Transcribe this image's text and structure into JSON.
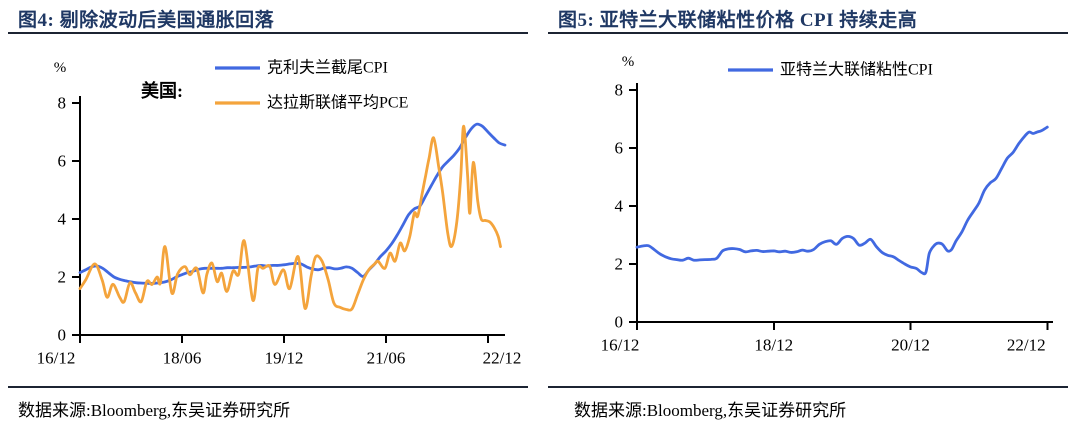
{
  "colors": {
    "blue": "#4169E1",
    "orange": "#F4A43C",
    "title_navy": "#1F3864",
    "rule": "#1c2433",
    "axis": "#000000"
  },
  "panels": [
    {
      "title": "图4: 剔除波动后美国通胀回落",
      "source": "数据来源:Bloomberg,东吴证券研究所"
    },
    {
      "title": "图5: 亚特兰大联储粘性价格 CPI 持续走高",
      "source": "数据来源:Bloomberg,东吴证券研究所"
    }
  ],
  "chart_data": [
    {
      "type": "line",
      "title": "剔除波动后美国通胀回落",
      "unit": "%",
      "annotation": "美国:",
      "x_encoding": "months_after_2016_12",
      "x_ticks": [
        {
          "label": "16/12",
          "month": 0
        },
        {
          "label": "18/06",
          "month": 18
        },
        {
          "label": "19/12",
          "month": 36
        },
        {
          "label": "21/06",
          "month": 54
        },
        {
          "label": "22/12",
          "month": 72
        }
      ],
      "x_max": 75,
      "ylim": [
        0,
        8
      ],
      "y_ticks": [
        0,
        2,
        4,
        6,
        8
      ],
      "grid": false,
      "legend_position": "top",
      "series": [
        {
          "name": "克利夫兰截尾CPI",
          "color": "#4169E1",
          "x": [
            0,
            1,
            2,
            3,
            4,
            5,
            6,
            7,
            8,
            9,
            10,
            11,
            12,
            13,
            14,
            15,
            16,
            17,
            18,
            19,
            20,
            21,
            22,
            23,
            24,
            25,
            26,
            27,
            28,
            29,
            30,
            31,
            32,
            33,
            34,
            35,
            36,
            37,
            38,
            39,
            40,
            41,
            42,
            43,
            44,
            45,
            46,
            47,
            48,
            49,
            50,
            51,
            52,
            53,
            54,
            55,
            56,
            57,
            58,
            59,
            60,
            61,
            62,
            63,
            64,
            65,
            66,
            67,
            68,
            69,
            70,
            71,
            72,
            73,
            74,
            75
          ],
          "y": [
            2.15,
            2.25,
            2.35,
            2.38,
            2.3,
            2.15,
            2.0,
            1.92,
            1.87,
            1.83,
            1.8,
            1.79,
            1.78,
            1.78,
            1.8,
            1.83,
            1.9,
            2.0,
            2.08,
            2.15,
            2.2,
            2.27,
            2.3,
            2.3,
            2.3,
            2.3,
            2.32,
            2.32,
            2.33,
            2.33,
            2.35,
            2.38,
            2.4,
            2.38,
            2.4,
            2.4,
            2.42,
            2.45,
            2.47,
            2.45,
            2.35,
            2.28,
            2.25,
            2.3,
            2.32,
            2.28,
            2.3,
            2.35,
            2.3,
            2.15,
            2.02,
            2.25,
            2.45,
            2.7,
            2.9,
            3.15,
            3.45,
            3.8,
            4.15,
            4.35,
            4.45,
            4.8,
            5.15,
            5.5,
            5.8,
            6.0,
            6.2,
            6.45,
            6.8,
            7.1,
            7.27,
            7.2,
            7.0,
            6.8,
            6.62,
            6.55
          ]
        },
        {
          "name": "达拉斯联储平均PCE",
          "color": "#F4A43C",
          "x": [
            0,
            1,
            2.6,
            3.9,
            4.8,
            5.8,
            7,
            7.8,
            8.8,
            9.8,
            10.8,
            11.8,
            12.7,
            13.6,
            14.2,
            15,
            16.2,
            17.2,
            18.5,
            19.4,
            20.6,
            21.7,
            22.4,
            23.3,
            24.2,
            25,
            25.9,
            27,
            28,
            29,
            30.5,
            31.4,
            32.3,
            33.5,
            34.4,
            35.9,
            37,
            38.5,
            39.7,
            40.8,
            41.6,
            42.7,
            43.8,
            44.8,
            45.9,
            47,
            48,
            49,
            50,
            51,
            52,
            52.6,
            53.8,
            54.7,
            55.6,
            56.5,
            57.3,
            58.2,
            59,
            59.6,
            60.4,
            61,
            61.6,
            62.4,
            63.3,
            64,
            64.9,
            65.6,
            66.5,
            67.2,
            67.7,
            68.4,
            68.8,
            69.4,
            70.2,
            70.8,
            71.5,
            72.3,
            73.1,
            73.8,
            74.2
          ],
          "y": [
            1.6,
            1.9,
            2.45,
            1.9,
            1.3,
            1.75,
            1.3,
            1.15,
            1.8,
            1.45,
            1.15,
            1.85,
            1.74,
            2.0,
            1.8,
            3.05,
            1.45,
            2.1,
            2.36,
            2.08,
            2.3,
            1.45,
            2.1,
            2.48,
            1.84,
            2.13,
            1.5,
            2.2,
            2.1,
            3.24,
            1.2,
            2.3,
            2.3,
            2.37,
            1.74,
            2.25,
            1.6,
            2.7,
            0.92,
            2.05,
            2.7,
            2.55,
            1.9,
            1.1,
            0.95,
            0.88,
            0.9,
            1.4,
            1.9,
            2.26,
            2.45,
            2.54,
            2.3,
            2.82,
            2.55,
            3.17,
            2.9,
            3.4,
            4.2,
            4.1,
            4.9,
            5.5,
            6.1,
            6.8,
            5.8,
            4.9,
            3.5,
            3.06,
            3.9,
            5.5,
            7.2,
            5.5,
            4.2,
            5.95,
            4.6,
            4.0,
            3.95,
            3.9,
            3.7,
            3.4,
            3.05
          ]
        }
      ]
    },
    {
      "type": "line",
      "title": "亚特兰大联储粘性价格 CPI 持续走高",
      "unit": "%",
      "annotation": "",
      "x_encoding": "months_after_2016_12",
      "x_ticks": [
        {
          "label": "16/12",
          "month": 0
        },
        {
          "label": "18/12",
          "month": 24
        },
        {
          "label": "20/12",
          "month": 48
        },
        {
          "label": "22/12",
          "month": 72
        }
      ],
      "x_max": 73,
      "ylim": [
        0,
        8
      ],
      "y_ticks": [
        0,
        2,
        4,
        6,
        8
      ],
      "grid": false,
      "legend_position": "top",
      "series": [
        {
          "name": "亚特兰大联储粘性CPI",
          "color": "#4169E1",
          "x": [
            0,
            1,
            2,
            3,
            4,
            5,
            6,
            7,
            8,
            9,
            10,
            11,
            12,
            13,
            14,
            15,
            16,
            17,
            18,
            19,
            20,
            21,
            22,
            23,
            24,
            25,
            26,
            27,
            28,
            29,
            30,
            31,
            32,
            33,
            34,
            35,
            36,
            37,
            38,
            39,
            40,
            41,
            42,
            43,
            44,
            45,
            46,
            47,
            48,
            49,
            50,
            50.7,
            51.3,
            52.2,
            52.8,
            53.6,
            54.5,
            55.2,
            56,
            57,
            58,
            59,
            60,
            61,
            62,
            63,
            64,
            65,
            66,
            67,
            68,
            68.8,
            69.5,
            70.2,
            71,
            72
          ],
          "y": [
            2.58,
            2.62,
            2.63,
            2.5,
            2.35,
            2.25,
            2.18,
            2.15,
            2.13,
            2.2,
            2.13,
            2.14,
            2.15,
            2.16,
            2.2,
            2.45,
            2.52,
            2.53,
            2.5,
            2.42,
            2.45,
            2.47,
            2.43,
            2.44,
            2.45,
            2.42,
            2.44,
            2.4,
            2.42,
            2.48,
            2.44,
            2.5,
            2.68,
            2.77,
            2.8,
            2.68,
            2.88,
            2.95,
            2.88,
            2.65,
            2.72,
            2.85,
            2.6,
            2.4,
            2.3,
            2.25,
            2.12,
            2.0,
            1.9,
            1.85,
            1.7,
            1.72,
            2.37,
            2.65,
            2.72,
            2.68,
            2.45,
            2.5,
            2.8,
            3.1,
            3.5,
            3.8,
            4.1,
            4.55,
            4.8,
            4.95,
            5.3,
            5.65,
            5.85,
            6.15,
            6.4,
            6.55,
            6.5,
            6.55,
            6.6,
            6.72
          ]
        }
      ]
    }
  ]
}
